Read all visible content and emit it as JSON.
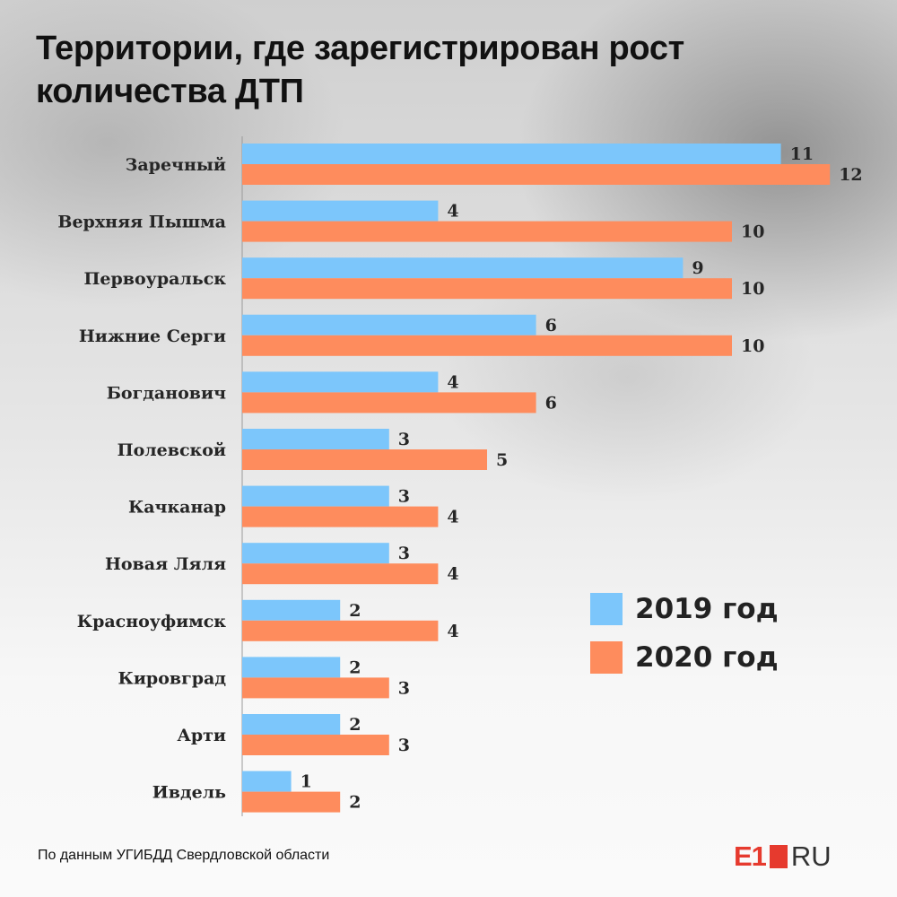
{
  "title": "Территории, где зарегистрирован рост количества ДТП",
  "source": "По данным УГИБДД Свердловской области",
  "logo": {
    "main": "E1",
    "suffix": "RU"
  },
  "colors": {
    "series_2019": "#7cc6fb",
    "series_2020": "#fe8c5d",
    "brand": "#e63a2e"
  },
  "chart_data": {
    "type": "bar",
    "orientation": "horizontal",
    "categories": [
      "Заречный",
      "Верхняя Пышма",
      "Первоуральск",
      "Нижние Серги",
      "Богданович",
      "Полевской",
      "Качканар",
      "Новая Ляля",
      "Красноуфимск",
      "Кировград",
      "Арти",
      "Ивдель"
    ],
    "series": [
      {
        "name": "2019 год",
        "values": [
          11,
          4,
          9,
          6,
          4,
          3,
          3,
          3,
          2,
          2,
          2,
          1
        ]
      },
      {
        "name": "2020 год",
        "values": [
          12,
          10,
          10,
          10,
          6,
          5,
          4,
          4,
          4,
          3,
          3,
          2
        ]
      }
    ],
    "xlim": [
      0,
      12
    ],
    "grid": false,
    "legend_position": "bottom-right"
  }
}
